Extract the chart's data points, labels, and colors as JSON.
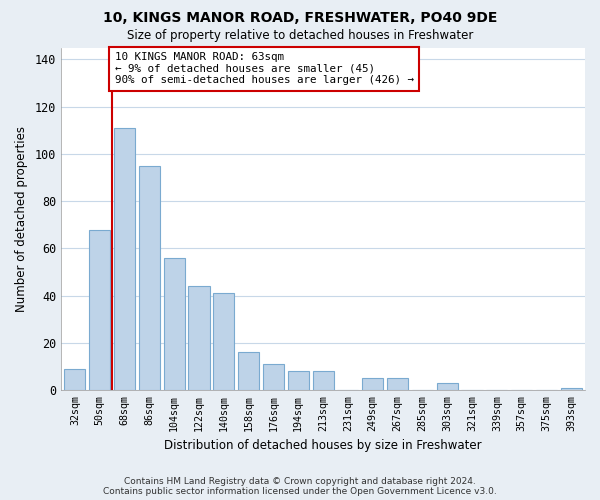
{
  "title": "10, KINGS MANOR ROAD, FRESHWATER, PO40 9DE",
  "subtitle": "Size of property relative to detached houses in Freshwater",
  "xlabel": "Distribution of detached houses by size in Freshwater",
  "ylabel": "Number of detached properties",
  "bar_labels": [
    "32sqm",
    "50sqm",
    "68sqm",
    "86sqm",
    "104sqm",
    "122sqm",
    "140sqm",
    "158sqm",
    "176sqm",
    "194sqm",
    "213sqm",
    "231sqm",
    "249sqm",
    "267sqm",
    "285sqm",
    "303sqm",
    "321sqm",
    "339sqm",
    "357sqm",
    "375sqm",
    "393sqm"
  ],
  "bar_values": [
    9,
    68,
    111,
    95,
    56,
    44,
    41,
    16,
    11,
    8,
    8,
    0,
    5,
    5,
    0,
    3,
    0,
    0,
    0,
    0,
    1
  ],
  "bar_color": "#bed3e8",
  "bar_edge_color": "#7aaad0",
  "vline_x": 1.5,
  "vline_color": "#cc0000",
  "annotation_line1": "10 KINGS MANOR ROAD: 63sqm",
  "annotation_line2": "← 9% of detached houses are smaller (45)",
  "annotation_line3": "90% of semi-detached houses are larger (426) →",
  "annotation_box_color": "#ffffff",
  "annotation_box_edge": "#cc0000",
  "ylim": [
    0,
    145
  ],
  "yticks": [
    0,
    20,
    40,
    60,
    80,
    100,
    120,
    140
  ],
  "footnote1": "Contains HM Land Registry data © Crown copyright and database right 2024.",
  "footnote2": "Contains public sector information licensed under the Open Government Licence v3.0.",
  "background_color": "#e8eef4",
  "plot_background": "#ffffff",
  "grid_color": "#c8d8e8"
}
